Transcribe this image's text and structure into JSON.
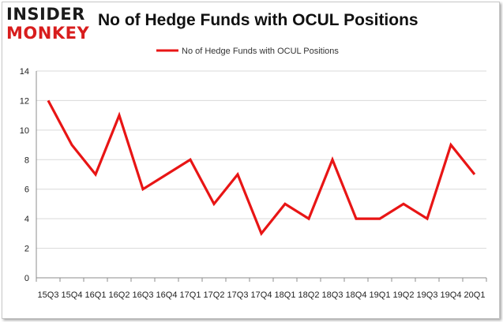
{
  "brand": {
    "line1": "INSIDER",
    "line2": "MONKEY"
  },
  "colors": {
    "series": "#e81515",
    "grid": "#d9d9d9",
    "axis": "#8c8c8c",
    "logo_red": "#d81d1d"
  },
  "chart_data": {
    "type": "line",
    "title": "No of Hedge Funds with OCUL Positions",
    "xlabel": "",
    "ylabel": "",
    "ylim": [
      0,
      14
    ],
    "yticks": [
      0,
      2,
      4,
      6,
      8,
      10,
      12,
      14
    ],
    "grid": true,
    "legend_position": "top-center",
    "x": [
      "15Q3",
      "15Q4",
      "16Q1",
      "16Q2",
      "16Q3",
      "16Q4",
      "17Q1",
      "17Q2",
      "17Q3",
      "17Q4",
      "18Q1",
      "18Q2",
      "18Q3",
      "18Q4",
      "19Q1",
      "19Q2",
      "19Q3",
      "19Q4",
      "20Q1"
    ],
    "series": [
      {
        "name": "No of Hedge Funds with OCUL Positions",
        "values": [
          12,
          9,
          7,
          11,
          6,
          7,
          8,
          5,
          7,
          3,
          5,
          4,
          8,
          4,
          4,
          5,
          4,
          9,
          7
        ]
      }
    ]
  }
}
